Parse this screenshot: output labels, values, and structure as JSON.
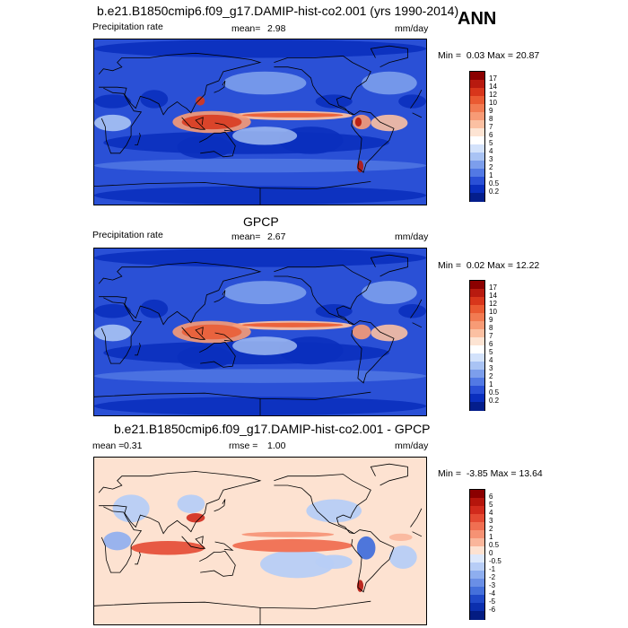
{
  "season": "ANN",
  "panels": [
    {
      "title": "b.e21.B1850cmip6.f09_g17.DAMIP-hist-co2.001 (yrs 1990-2014)",
      "left_label": "Precipitation rate",
      "center_label": "mean=",
      "center_value": "2.98",
      "right_label": "",
      "right_value": "",
      "units": "mm/day",
      "min_label": "Min =",
      "min_value": "0.03",
      "max_label": "Max =",
      "max_value": "20.87",
      "colorbar_labels": [
        "17",
        "14",
        "12",
        "10",
        "9",
        "8",
        "7",
        "6",
        "5",
        "4",
        "3",
        "2",
        "1",
        "0.5",
        "0.2"
      ],
      "colorbar_colors": [
        "#8b0000",
        "#b81a0f",
        "#d8361b",
        "#ea5a32",
        "#f27b52",
        "#f79b76",
        "#fbc0a2",
        "#fde4d3",
        "#ffffff",
        "#d3e2fb",
        "#a9c3f4",
        "#7c9eec",
        "#5279e4",
        "#2a50d6",
        "#0a2fbe",
        "#041e8c"
      ],
      "field": "precip_model"
    },
    {
      "title": "GPCP",
      "left_label": "Precipitation rate",
      "center_label": "mean=",
      "center_value": "2.67",
      "right_label": "",
      "right_value": "",
      "units": "mm/day",
      "min_label": "Min =",
      "min_value": "0.02",
      "max_label": "Max =",
      "max_value": "12.22",
      "colorbar_labels": [
        "17",
        "14",
        "12",
        "10",
        "9",
        "8",
        "7",
        "6",
        "5",
        "4",
        "3",
        "2",
        "1",
        "0.5",
        "0.2"
      ],
      "colorbar_colors": [
        "#8b0000",
        "#b81a0f",
        "#d8361b",
        "#ea5a32",
        "#f27b52",
        "#f79b76",
        "#fbc0a2",
        "#fde4d3",
        "#ffffff",
        "#d3e2fb",
        "#a9c3f4",
        "#7c9eec",
        "#5279e4",
        "#2a50d6",
        "#0a2fbe",
        "#041e8c"
      ],
      "field": "precip_obs"
    },
    {
      "title": "b.e21.B1850cmip6.f09_g17.DAMIP-hist-co2.001 - GPCP",
      "left_label": "mean =",
      "left_value": "0.31",
      "center_label": "rmse =",
      "center_value": "1.00",
      "units": "mm/day",
      "min_label": "Min =",
      "min_value": "-3.85",
      "max_label": "Max =",
      "max_value": "13.64",
      "colorbar_labels": [
        "6",
        "5",
        "4",
        "3",
        "2",
        "1",
        "0.5",
        "0",
        "-0.5",
        "-1",
        "-2",
        "-3",
        "-4",
        "-5",
        "-6"
      ],
      "colorbar_colors": [
        "#8b0000",
        "#b5150c",
        "#d12a1c",
        "#e44a33",
        "#f06f52",
        "#f69274",
        "#fab69b",
        "#fde2d1",
        "#dde8fb",
        "#b7cdf6",
        "#8eaeef",
        "#6a8fe6",
        "#4570db",
        "#2049c8",
        "#0b2fae",
        "#041c82"
      ],
      "field": "precip_diff"
    }
  ]
}
